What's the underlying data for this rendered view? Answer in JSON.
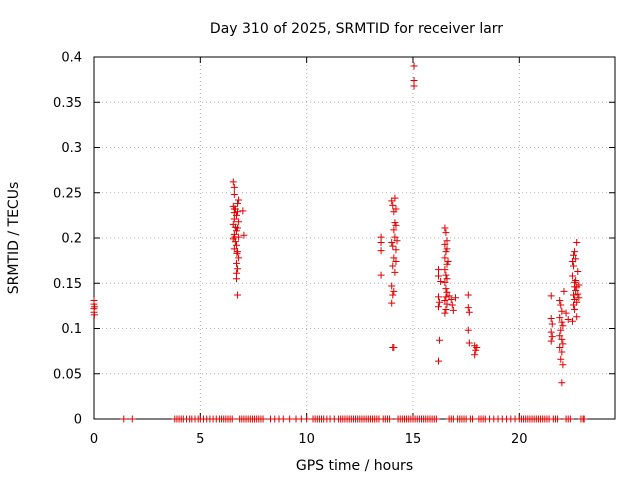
{
  "chart_data": {
    "type": "scatter",
    "title": "Day 310 of 2025, SRMTID for receiver larr",
    "xlabel": "GPS time / hours",
    "ylabel": "SRMTID / TECUs",
    "xlim": [
      0,
      24.5
    ],
    "ylim": [
      0,
      0.4
    ],
    "xticks": [
      0,
      5,
      10,
      15,
      20
    ],
    "yticks": [
      0,
      0.05,
      0.1,
      0.15,
      0.2,
      0.25,
      0.3,
      0.35,
      0.4
    ],
    "xtick_labels": [
      "0",
      "5",
      "10",
      "15",
      "20"
    ],
    "ytick_labels": [
      "0",
      "0.05",
      "0.1",
      "0.15",
      "0.2",
      "0.25",
      "0.3",
      "0.35",
      "0.4"
    ],
    "grid": true,
    "marker": "+",
    "color": "#e00000",
    "series": [
      {
        "name": "SRMTID",
        "points": [
          [
            0.0,
            0.118
          ],
          [
            0.0,
            0.122
          ],
          [
            0.0,
            0.127
          ],
          [
            0.0,
            0.131
          ],
          [
            0.02,
            0.115
          ],
          [
            0.03,
            0.124
          ],
          [
            6.55,
            0.262
          ],
          [
            6.6,
            0.256
          ],
          [
            6.6,
            0.248
          ],
          [
            6.55,
            0.235
          ],
          [
            6.65,
            0.232
          ],
          [
            6.6,
            0.228
          ],
          [
            6.7,
            0.225
          ],
          [
            6.6,
            0.221
          ],
          [
            6.55,
            0.215
          ],
          [
            6.65,
            0.212
          ],
          [
            6.7,
            0.208
          ],
          [
            6.6,
            0.204
          ],
          [
            6.55,
            0.199
          ],
          [
            6.65,
            0.196
          ],
          [
            6.7,
            0.192
          ],
          [
            6.6,
            0.188
          ],
          [
            6.75,
            0.238
          ],
          [
            6.8,
            0.242
          ],
          [
            6.75,
            0.229
          ],
          [
            6.8,
            0.218
          ],
          [
            6.75,
            0.211
          ],
          [
            6.8,
            0.201
          ],
          [
            6.75,
            0.185
          ],
          [
            6.8,
            0.178
          ],
          [
            6.7,
            0.172
          ],
          [
            6.75,
            0.166
          ],
          [
            6.7,
            0.161
          ],
          [
            6.7,
            0.155
          ],
          [
            6.75,
            0.137
          ],
          [
            7.0,
            0.23
          ],
          [
            7.05,
            0.203
          ],
          [
            6.6,
            0.232
          ],
          [
            6.62,
            0.201
          ],
          [
            6.72,
            0.183
          ],
          [
            13.5,
            0.201
          ],
          [
            13.5,
            0.195
          ],
          [
            13.5,
            0.186
          ],
          [
            13.5,
            0.159
          ],
          [
            14.0,
            0.241
          ],
          [
            14.05,
            0.236
          ],
          [
            14.15,
            0.244
          ],
          [
            14.1,
            0.229
          ],
          [
            14.15,
            0.217
          ],
          [
            14.2,
            0.214
          ],
          [
            14.1,
            0.209
          ],
          [
            14.15,
            0.201
          ],
          [
            14.0,
            0.195
          ],
          [
            14.05,
            0.191
          ],
          [
            14.2,
            0.187
          ],
          [
            14.1,
            0.178
          ],
          [
            14.2,
            0.174
          ],
          [
            14.05,
            0.169
          ],
          [
            14.15,
            0.162
          ],
          [
            14.0,
            0.147
          ],
          [
            14.1,
            0.141
          ],
          [
            14.05,
            0.137
          ],
          [
            14.0,
            0.128
          ],
          [
            14.05,
            0.079
          ],
          [
            14.1,
            0.079
          ],
          [
            14.2,
            0.232
          ],
          [
            14.25,
            0.197
          ],
          [
            15.05,
            0.39
          ],
          [
            15.05,
            0.374
          ],
          [
            15.05,
            0.368
          ],
          [
            16.2,
            0.165
          ],
          [
            16.2,
            0.158
          ],
          [
            16.3,
            0.152
          ],
          [
            16.2,
            0.135
          ],
          [
            16.25,
            0.129
          ],
          [
            16.2,
            0.124
          ],
          [
            16.25,
            0.087
          ],
          [
            16.2,
            0.064
          ],
          [
            16.5,
            0.211
          ],
          [
            16.55,
            0.206
          ],
          [
            16.5,
            0.193
          ],
          [
            16.6,
            0.188
          ],
          [
            16.55,
            0.185
          ],
          [
            16.5,
            0.178
          ],
          [
            16.6,
            0.171
          ],
          [
            16.5,
            0.165
          ],
          [
            16.55,
            0.159
          ],
          [
            16.6,
            0.155
          ],
          [
            16.5,
            0.151
          ],
          [
            16.55,
            0.144
          ],
          [
            16.6,
            0.14
          ],
          [
            16.55,
            0.135
          ],
          [
            16.5,
            0.131
          ],
          [
            16.6,
            0.127
          ],
          [
            16.55,
            0.121
          ],
          [
            16.5,
            0.117
          ],
          [
            16.6,
            0.197
          ],
          [
            16.65,
            0.174
          ],
          [
            16.7,
            0.136
          ],
          [
            16.8,
            0.132
          ],
          [
            16.85,
            0.126
          ],
          [
            16.9,
            0.12
          ],
          [
            17.0,
            0.134
          ],
          [
            17.6,
            0.137
          ],
          [
            17.6,
            0.123
          ],
          [
            17.65,
            0.118
          ],
          [
            17.6,
            0.098
          ],
          [
            17.65,
            0.084
          ],
          [
            17.9,
            0.081
          ],
          [
            17.95,
            0.076
          ],
          [
            17.9,
            0.071
          ],
          [
            18.0,
            0.079
          ],
          [
            21.5,
            0.136
          ],
          [
            21.5,
            0.111
          ],
          [
            21.55,
            0.105
          ],
          [
            21.5,
            0.096
          ],
          [
            21.55,
            0.091
          ],
          [
            21.5,
            0.086
          ],
          [
            21.9,
            0.131
          ],
          [
            21.95,
            0.126
          ],
          [
            22.0,
            0.119
          ],
          [
            21.9,
            0.112
          ],
          [
            22.0,
            0.107
          ],
          [
            22.05,
            0.103
          ],
          [
            21.95,
            0.098
          ],
          [
            21.9,
            0.092
          ],
          [
            22.0,
            0.088
          ],
          [
            22.05,
            0.083
          ],
          [
            21.9,
            0.079
          ],
          [
            22.0,
            0.074
          ],
          [
            21.95,
            0.066
          ],
          [
            22.05,
            0.06
          ],
          [
            22.0,
            0.04
          ],
          [
            22.1,
            0.141
          ],
          [
            22.2,
            0.117
          ],
          [
            22.3,
            0.11
          ],
          [
            22.5,
            0.174
          ],
          [
            22.55,
            0.181
          ],
          [
            22.6,
            0.185
          ],
          [
            22.65,
            0.177
          ],
          [
            22.7,
            0.195
          ],
          [
            22.55,
            0.169
          ],
          [
            22.5,
            0.158
          ],
          [
            22.6,
            0.151
          ],
          [
            22.7,
            0.146
          ],
          [
            22.65,
            0.142
          ],
          [
            22.55,
            0.137
          ],
          [
            22.6,
            0.132
          ],
          [
            22.7,
            0.129
          ],
          [
            22.55,
            0.126
          ],
          [
            22.6,
            0.121
          ],
          [
            22.7,
            0.113
          ],
          [
            22.5,
            0.108
          ],
          [
            22.65,
            0.153
          ],
          [
            22.75,
            0.163
          ],
          [
            22.8,
            0.148
          ],
          [
            22.75,
            0.138
          ],
          [
            22.8,
            0.134
          ],
          [
            22.6,
            0.146
          ]
        ],
        "zeros": [
          1.4,
          1.8,
          3.8,
          3.9,
          4.0,
          4.1,
          4.2,
          4.35,
          4.5,
          4.6,
          4.75,
          4.9,
          5.0,
          5.15,
          5.3,
          5.45,
          5.6,
          5.75,
          5.9,
          6.0,
          6.1,
          6.2,
          6.3,
          6.4,
          6.5,
          6.85,
          6.95,
          7.05,
          7.15,
          7.25,
          7.35,
          7.45,
          7.55,
          7.65,
          7.75,
          7.85,
          7.95,
          8.3,
          8.5,
          8.7,
          8.9,
          9.2,
          9.5,
          9.75,
          10.0,
          10.3,
          10.4,
          10.5,
          10.6,
          10.7,
          10.8,
          10.95,
          11.1,
          11.3,
          11.5,
          11.6,
          11.7,
          11.8,
          11.9,
          12.0,
          12.1,
          12.2,
          12.3,
          12.4,
          12.5,
          12.6,
          12.7,
          12.8,
          12.9,
          13.0,
          13.1,
          13.2,
          13.3,
          13.4,
          13.6,
          13.7,
          13.8,
          13.9,
          14.3,
          14.4,
          14.5,
          14.6,
          14.7,
          14.8,
          14.9,
          15.0,
          15.1,
          15.2,
          15.3,
          15.4,
          15.5,
          15.6,
          15.7,
          15.8,
          15.9,
          16.0,
          16.1,
          16.7,
          16.8,
          16.9,
          17.1,
          17.2,
          17.3,
          17.4,
          17.5,
          17.7,
          17.8,
          18.1,
          18.2,
          18.3,
          18.4,
          18.6,
          18.8,
          19.0,
          19.2,
          19.4,
          19.6,
          19.8,
          20.0,
          20.1,
          20.2,
          20.3,
          20.4,
          20.5,
          20.6,
          20.7,
          20.8,
          20.9,
          21.0,
          21.1,
          21.2,
          21.3,
          21.4,
          21.6,
          21.7,
          21.8,
          22.2,
          22.3,
          22.4,
          22.9,
          23.0,
          23.05
        ]
      }
    ]
  }
}
